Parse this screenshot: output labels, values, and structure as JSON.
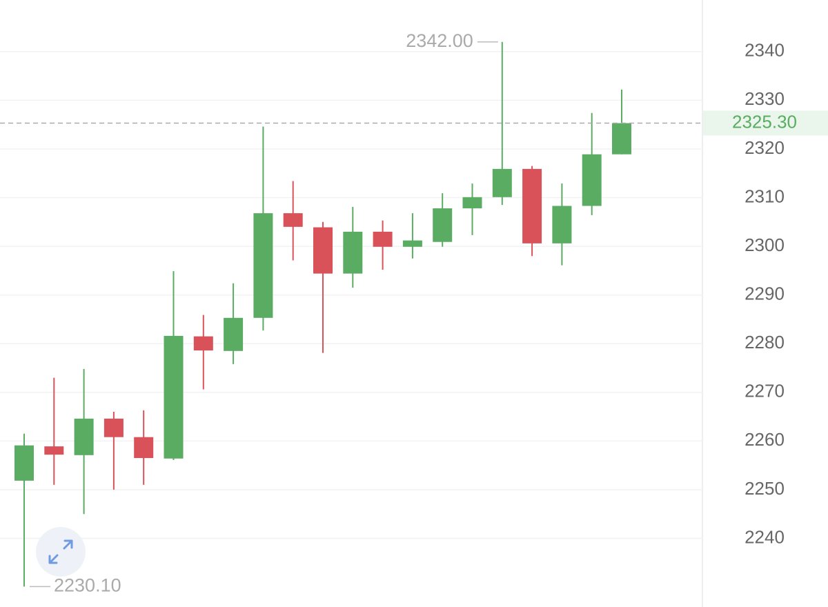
{
  "chart_data": {
    "type": "candlestick",
    "open": [
      2251.85,
      2258.9,
      2257.1,
      2264.6,
      2260.8,
      2256.4,
      2281.5,
      2278.5,
      2285.3,
      2306.8,
      2303.9,
      2294.4,
      2303.0,
      2299.9,
      2300.9,
      2307.8,
      2310.1,
      2315.9,
      2300.6,
      2308.3,
      2318.9
    ],
    "high": [
      2261.5,
      2273.0,
      2274.8,
      2266.0,
      2266.3,
      2294.9,
      2285.9,
      2292.4,
      2324.6,
      2313.4,
      2305.0,
      2308.1,
      2305.3,
      2306.8,
      2310.9,
      2312.9,
      2342.0,
      2316.5,
      2312.9,
      2327.4,
      2332.2
    ],
    "low": [
      2230.1,
      2251.0,
      2245.0,
      2250.0,
      2251.0,
      2256.1,
      2270.6,
      2275.8,
      2282.7,
      2297.1,
      2278.1,
      2291.5,
      2295.2,
      2297.5,
      2299.9,
      2302.3,
      2308.5,
      2298.0,
      2296.1,
      2306.4,
      2318.9
    ],
    "close": [
      2259.1,
      2257.2,
      2264.6,
      2260.8,
      2256.5,
      2281.6,
      2278.6,
      2285.3,
      2306.8,
      2304.0,
      2294.4,
      2303.0,
      2299.9,
      2301.2,
      2307.8,
      2310.1,
      2315.9,
      2300.6,
      2308.3,
      2318.9,
      2325.3
    ],
    "up_color": "#5aac62",
    "down_color": "#d9525a",
    "ylim": [
      2225.9,
      2350.6
    ],
    "yticks": [
      2240,
      2250,
      2260,
      2270,
      2280,
      2290,
      2300,
      2310,
      2320,
      2330,
      2340
    ],
    "grid": true,
    "high_label": {
      "value": 2342,
      "label": "2342.00"
    },
    "low_label": {
      "value": 2230.1,
      "label": "2230.10"
    },
    "last_price": {
      "value": 2325.3,
      "label": "2325.30"
    }
  }
}
